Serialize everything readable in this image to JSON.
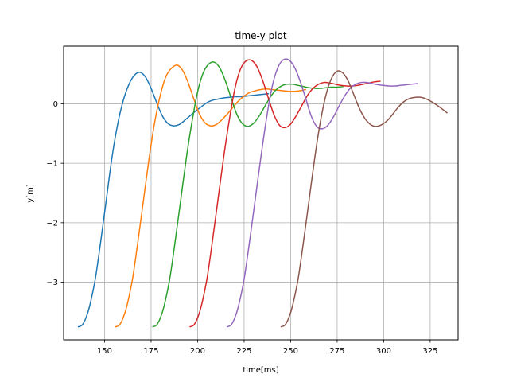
{
  "chart_data": {
    "type": "line",
    "title": "time-y plot",
    "xlabel": "time[ms]",
    "ylabel": "y[m]",
    "xlim": [
      128,
      340
    ],
    "ylim": [
      -3.97,
      0.97
    ],
    "xticks": [
      150,
      175,
      200,
      225,
      250,
      275,
      300,
      325
    ],
    "yticks": [
      -3,
      -2,
      -1,
      0
    ],
    "ytick_labels": [
      "−3",
      "−2",
      "−1",
      "0"
    ],
    "grid": true,
    "legend": "none",
    "series": [
      {
        "color": "#1f77b4",
        "x": [
          136,
          138,
          140,
          142,
          145,
          148,
          151,
          154,
          157,
          160,
          163,
          166,
          169,
          172,
          175,
          178,
          181,
          184,
          187,
          190,
          193,
          196,
          199,
          202,
          205,
          208,
          211,
          214,
          217,
          220,
          223,
          226,
          229,
          232,
          235,
          238
        ],
        "y": [
          -3.75,
          -3.72,
          -3.6,
          -3.4,
          -2.95,
          -2.3,
          -1.6,
          -0.9,
          -0.35,
          0.05,
          0.32,
          0.48,
          0.53,
          0.45,
          0.26,
          0.02,
          -0.2,
          -0.33,
          -0.37,
          -0.35,
          -0.28,
          -0.2,
          -0.12,
          -0.05,
          0.02,
          0.06,
          0.08,
          0.1,
          0.11,
          0.12,
          0.12,
          0.13,
          0.14,
          0.15,
          0.16,
          0.17
        ]
      },
      {
        "color": "#ff7f0e",
        "x": [
          156,
          158,
          160,
          162,
          165,
          168,
          171,
          174,
          177,
          180,
          183,
          186,
          189,
          192,
          195,
          198,
          201,
          204,
          207,
          210,
          213,
          216,
          219,
          222,
          225,
          228,
          231,
          234,
          237,
          240,
          243,
          246,
          249,
          252,
          255,
          258
        ],
        "y": [
          -3.75,
          -3.72,
          -3.6,
          -3.4,
          -2.95,
          -2.3,
          -1.6,
          -0.9,
          -0.3,
          0.15,
          0.46,
          0.6,
          0.65,
          0.56,
          0.35,
          0.08,
          -0.17,
          -0.32,
          -0.37,
          -0.35,
          -0.27,
          -0.17,
          -0.06,
          0.05,
          0.13,
          0.19,
          0.22,
          0.24,
          0.25,
          0.24,
          0.23,
          0.22,
          0.21,
          0.21,
          0.22,
          0.24
        ]
      },
      {
        "color": "#2ca02c",
        "x": [
          176,
          178,
          180,
          182,
          185,
          188,
          191,
          194,
          197,
          200,
          203,
          206,
          209,
          212,
          215,
          218,
          221,
          224,
          227,
          230,
          233,
          236,
          239,
          242,
          245,
          248,
          251,
          254,
          257,
          260,
          263,
          266,
          269,
          272,
          275,
          278
        ],
        "y": [
          -3.75,
          -3.72,
          -3.6,
          -3.4,
          -2.95,
          -2.3,
          -1.6,
          -0.9,
          -0.3,
          0.2,
          0.52,
          0.67,
          0.7,
          0.6,
          0.38,
          0.1,
          -0.17,
          -0.33,
          -0.38,
          -0.33,
          -0.21,
          -0.05,
          0.11,
          0.23,
          0.3,
          0.33,
          0.33,
          0.31,
          0.29,
          0.27,
          0.26,
          0.26,
          0.27,
          0.28,
          0.28,
          0.29
        ]
      },
      {
        "color": "#d62728",
        "x": [
          196,
          198,
          200,
          202,
          205,
          208,
          211,
          214,
          217,
          220,
          223,
          226,
          229,
          232,
          235,
          238,
          241,
          244,
          247,
          250,
          253,
          256,
          259,
          262,
          265,
          268,
          271,
          274,
          277,
          280,
          283,
          286,
          289,
          292,
          295,
          298
        ],
        "y": [
          -3.75,
          -3.72,
          -3.6,
          -3.4,
          -2.95,
          -2.3,
          -1.6,
          -0.9,
          -0.28,
          0.25,
          0.58,
          0.72,
          0.73,
          0.62,
          0.39,
          0.1,
          -0.18,
          -0.36,
          -0.4,
          -0.34,
          -0.2,
          -0.03,
          0.14,
          0.26,
          0.33,
          0.36,
          0.35,
          0.33,
          0.31,
          0.3,
          0.3,
          0.31,
          0.33,
          0.35,
          0.37,
          0.38
        ]
      },
      {
        "color": "#9467bd",
        "x": [
          216,
          218,
          220,
          222,
          225,
          228,
          231,
          234,
          237,
          240,
          243,
          246,
          249,
          252,
          255,
          258,
          261,
          264,
          267,
          270,
          273,
          276,
          279,
          282,
          285,
          288,
          291,
          294,
          297,
          300,
          303,
          306,
          309,
          312,
          315,
          318
        ],
        "y": [
          -3.75,
          -3.72,
          -3.6,
          -3.4,
          -2.95,
          -2.3,
          -1.6,
          -0.9,
          -0.25,
          0.28,
          0.6,
          0.74,
          0.74,
          0.62,
          0.39,
          0.1,
          -0.2,
          -0.38,
          -0.42,
          -0.36,
          -0.22,
          -0.04,
          0.13,
          0.26,
          0.33,
          0.36,
          0.36,
          0.34,
          0.32,
          0.31,
          0.3,
          0.3,
          0.31,
          0.32,
          0.33,
          0.34
        ]
      },
      {
        "color": "#8c564b",
        "x": [
          245,
          247,
          249,
          251,
          254,
          257,
          260,
          263,
          266,
          269,
          272,
          275,
          278,
          281,
          284,
          287,
          290,
          293,
          296,
          299,
          302,
          305,
          308,
          311,
          314,
          317,
          320,
          323,
          326,
          329,
          332,
          334
        ],
        "y": [
          -3.75,
          -3.72,
          -3.6,
          -3.4,
          -2.95,
          -2.3,
          -1.6,
          -0.9,
          -0.3,
          0.15,
          0.43,
          0.55,
          0.52,
          0.38,
          0.15,
          -0.08,
          -0.25,
          -0.35,
          -0.38,
          -0.35,
          -0.28,
          -0.17,
          -0.05,
          0.04,
          0.09,
          0.11,
          0.11,
          0.08,
          0.03,
          -0.03,
          -0.1,
          -0.15
        ]
      }
    ]
  }
}
